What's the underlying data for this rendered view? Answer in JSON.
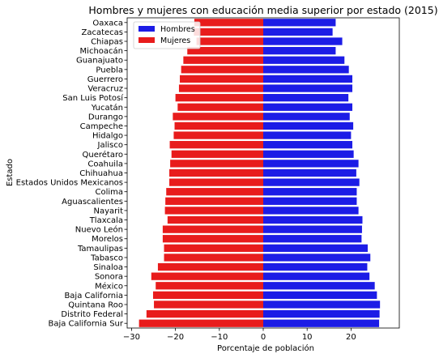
{
  "chart_data": {
    "type": "bar",
    "orientation": "horizontal",
    "title": "Hombres y mujeres con educación media superior por estado (2015)",
    "xlabel": "Porcentaje de población",
    "ylabel": "Estado",
    "xlim": [
      -31,
      31
    ],
    "xticks": [
      -30,
      -20,
      -10,
      0,
      10,
      20
    ],
    "xtick_labels": [
      "−30",
      "−20",
      "−10",
      "0",
      "10",
      "20"
    ],
    "grid": false,
    "legend": {
      "position": "top-left",
      "entries": [
        "Hombres",
        "Mujeres"
      ]
    },
    "categories": [
      "Oaxaca",
      "Zacatecas",
      "Chiapas",
      "Michoacán",
      "Guanajuato",
      "Puebla",
      "Guerrero",
      "Veracruz",
      "San Luis Potosí",
      "Yucatán",
      "Durango",
      "Campeche",
      "Hidalgo",
      "Jalisco",
      "Querétaro",
      "Coahuila",
      "Chihuahua",
      "Estados Unidos Mexicanos",
      "Colima",
      "Aguascalientes",
      "Nayarit",
      "Tlaxcala",
      "Nuevo León",
      "Morelos",
      "Tamaulipas",
      "Tabasco",
      "Sinaloa",
      "Sonora",
      "México",
      "Baja California",
      "Quintana Roo",
      "Distrito Federal",
      "Baja California Sur"
    ],
    "series": [
      {
        "name": "Hombres",
        "color": "#1c1ce6",
        "values": [
          16.5,
          15.8,
          18.0,
          16.5,
          18.5,
          19.5,
          20.3,
          20.3,
          19.4,
          20.3,
          19.7,
          20.5,
          20.0,
          20.3,
          20.6,
          21.7,
          21.2,
          21.9,
          21.3,
          21.3,
          21.7,
          22.6,
          22.5,
          22.4,
          23.8,
          24.4,
          23.7,
          24.2,
          25.4,
          25.9,
          26.6,
          26.5,
          26.4
        ]
      },
      {
        "name": "Mujeres",
        "color": "#e81c1c",
        "values": [
          -15.7,
          -15.8,
          -15.2,
          -17.3,
          -18.2,
          -18.7,
          -19.0,
          -19.2,
          -20.0,
          -19.5,
          -20.6,
          -20.2,
          -20.4,
          -21.3,
          -20.9,
          -21.2,
          -21.4,
          -21.4,
          -22.1,
          -22.3,
          -22.4,
          -21.8,
          -22.9,
          -22.9,
          -22.6,
          -22.6,
          -24.0,
          -25.5,
          -24.5,
          -25.1,
          -24.9,
          -26.6,
          -28.3
        ]
      }
    ]
  }
}
